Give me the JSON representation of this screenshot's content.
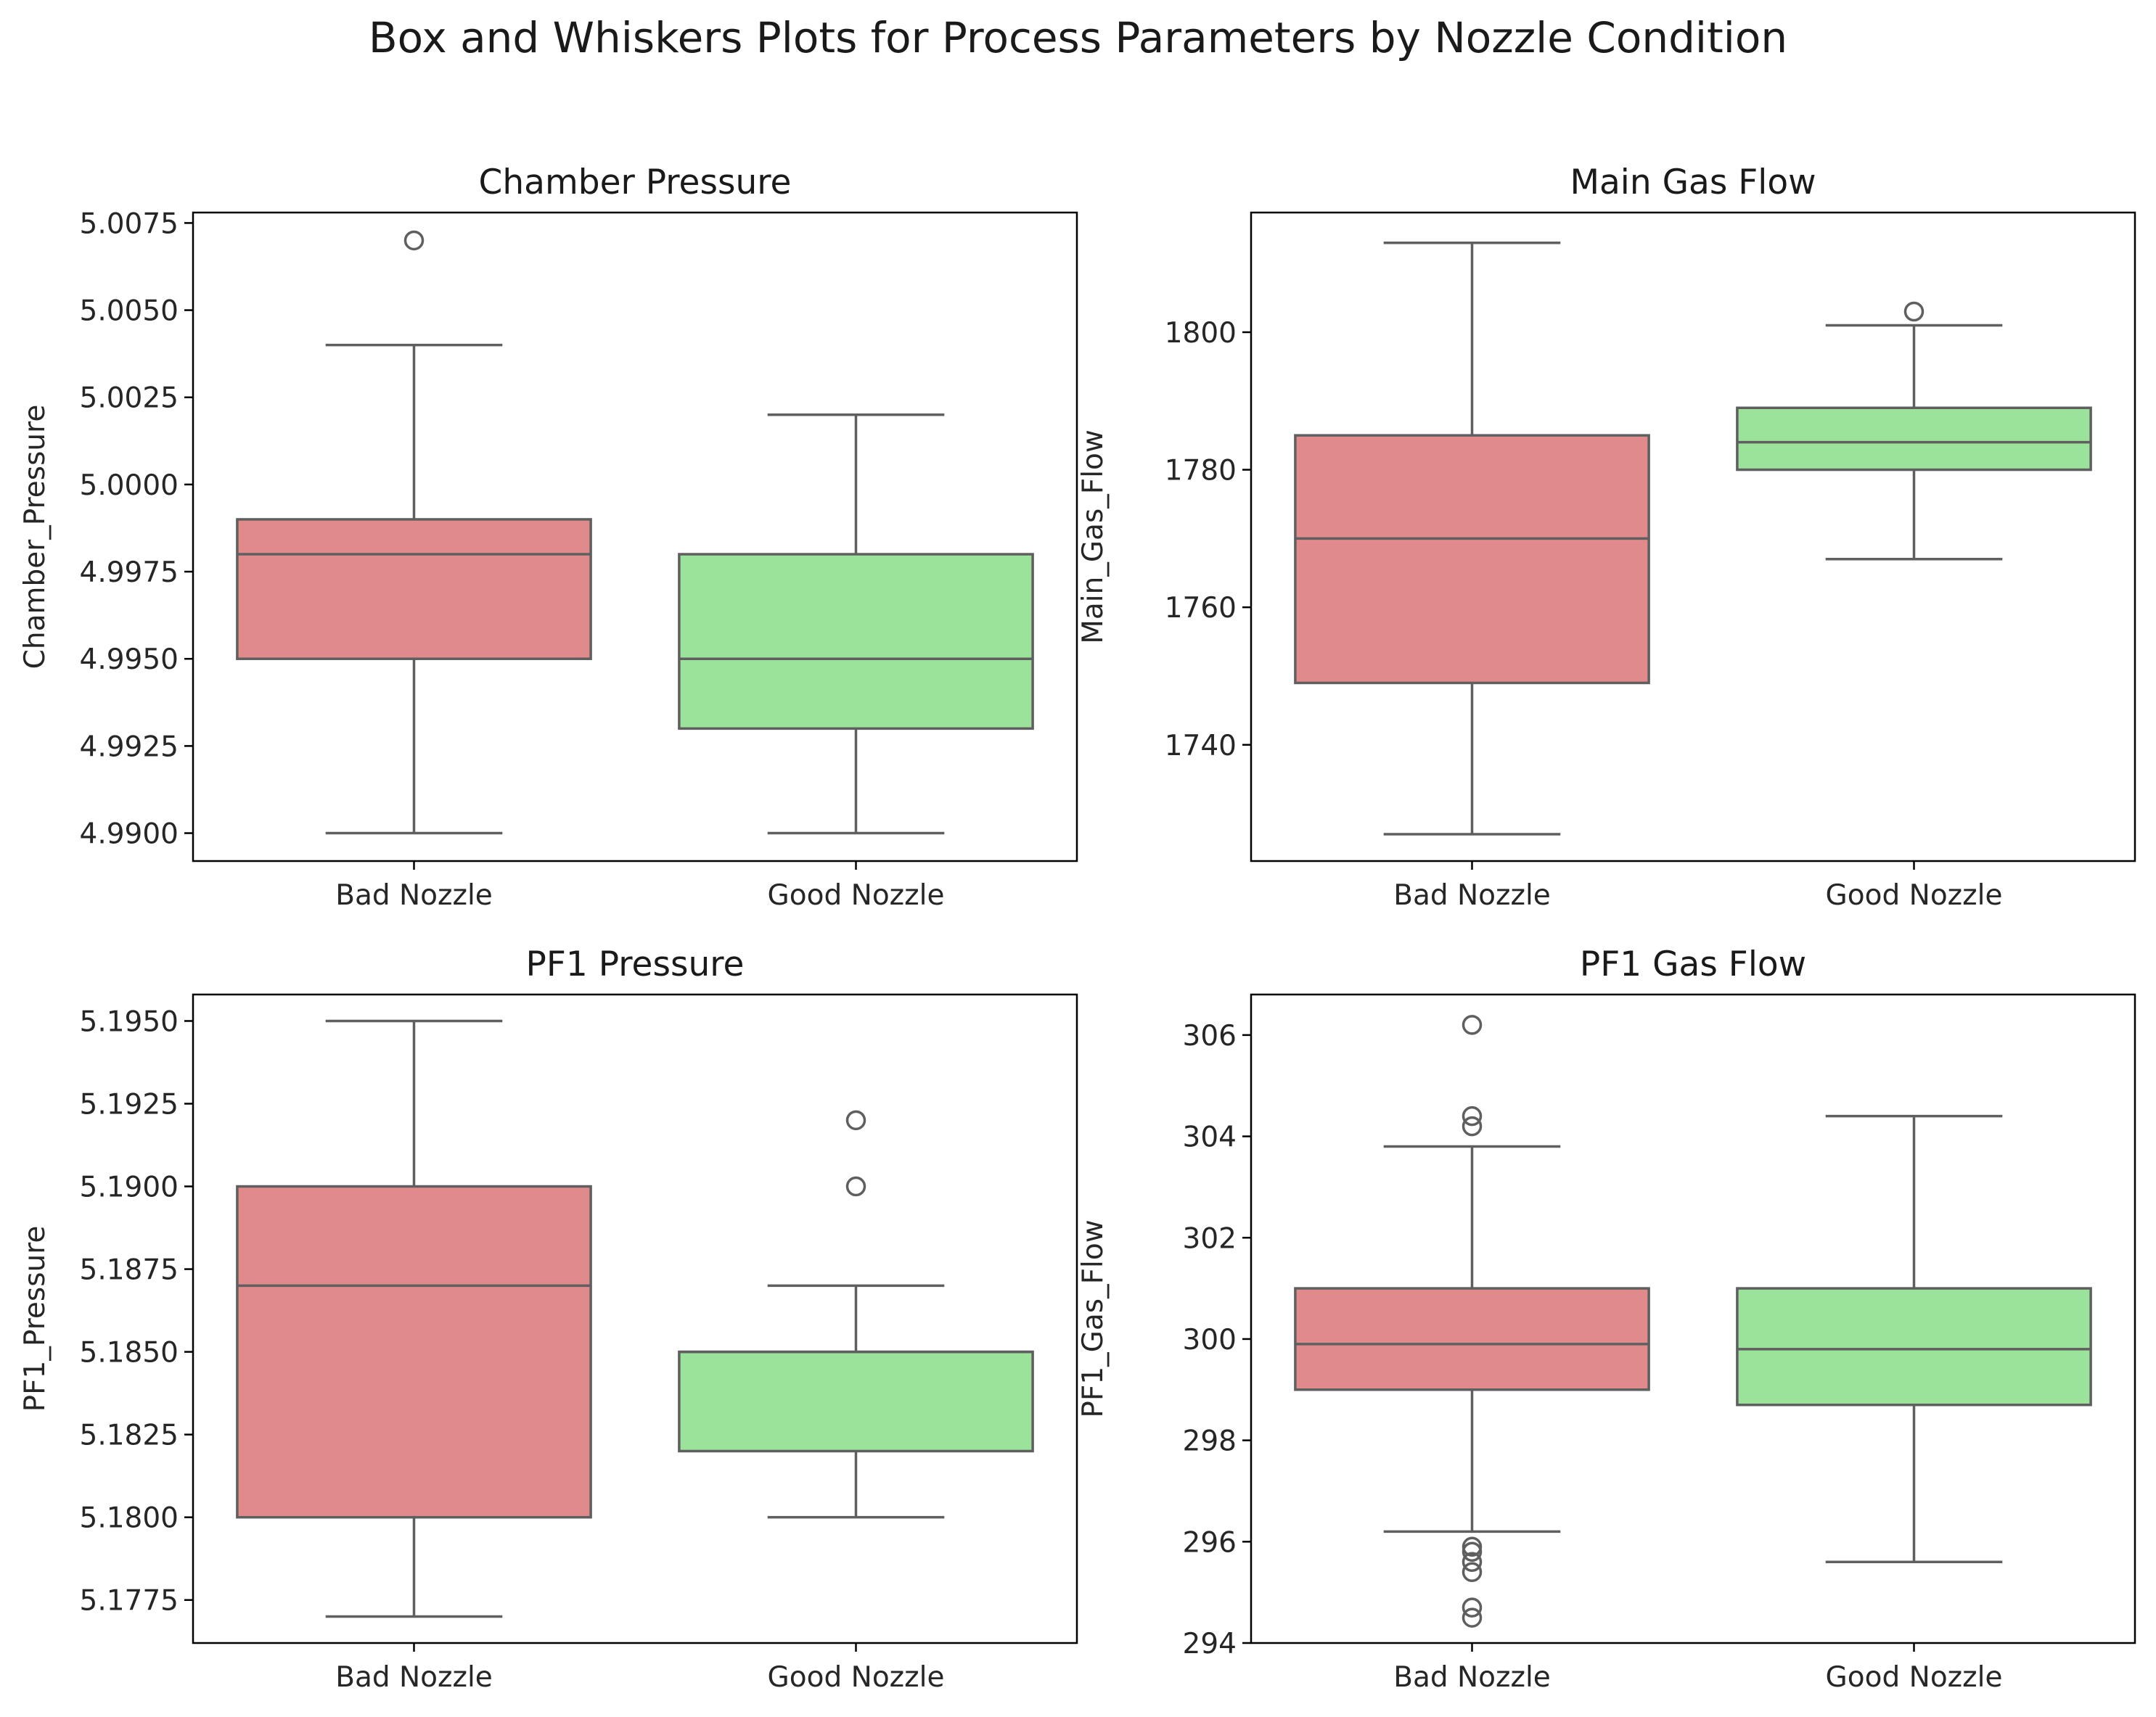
{
  "figure": {
    "title": "Box and Whiskers Plots for Process Parameters by Nozzle Condition"
  },
  "colors": {
    "bad_fill": "#e08a8c",
    "good_fill": "#9be29b",
    "stroke": "#5f5f5f",
    "axis": "#000000"
  },
  "chart_data": [
    {
      "type": "box",
      "title": "Chamber Pressure",
      "xlabel": "",
      "ylabel": "Chamber_Pressure",
      "ylim": [
        4.9892,
        5.0078
      ],
      "yticks": [
        4.99,
        4.9925,
        4.995,
        4.9975,
        5.0,
        5.0025,
        5.005,
        5.0075
      ],
      "ytick_labels": [
        "4.9900",
        "4.9925",
        "4.9950",
        "4.9975",
        "5.0000",
        "5.0025",
        "5.0050",
        "5.0075"
      ],
      "categories": [
        "Bad Nozzle",
        "Good Nozzle"
      ],
      "boxes": [
        {
          "category": "Bad Nozzle",
          "whisker_low": 4.99,
          "q1": 4.995,
          "median": 4.998,
          "q3": 4.999,
          "whisker_high": 5.004,
          "outliers": [
            5.007
          ]
        },
        {
          "category": "Good Nozzle",
          "whisker_low": 4.99,
          "q1": 4.993,
          "median": 4.995,
          "q3": 4.998,
          "whisker_high": 5.002,
          "outliers": []
        }
      ]
    },
    {
      "type": "box",
      "title": "Main Gas Flow",
      "xlabel": "",
      "ylabel": "Main_Gas_Flow",
      "ylim": [
        1723.1,
        1817.4
      ],
      "yticks": [
        1740,
        1760,
        1780,
        1800
      ],
      "ytick_labels": [
        "1740",
        "1760",
        "1780",
        "1800"
      ],
      "categories": [
        "Bad Nozzle",
        "Good Nozzle"
      ],
      "boxes": [
        {
          "category": "Bad Nozzle",
          "whisker_low": 1727,
          "q1": 1749,
          "median": 1770,
          "q3": 1785,
          "whisker_high": 1813,
          "outliers": []
        },
        {
          "category": "Good Nozzle",
          "whisker_low": 1767,
          "q1": 1780,
          "median": 1784,
          "q3": 1789,
          "whisker_high": 1801,
          "outliers": [
            1803
          ]
        }
      ]
    },
    {
      "type": "box",
      "title": "PF1 Pressure",
      "xlabel": "",
      "ylabel": "PF1_Pressure",
      "ylim": [
        5.1762,
        5.1958
      ],
      "yticks": [
        5.1775,
        5.18,
        5.1825,
        5.185,
        5.1875,
        5.19,
        5.1925,
        5.195
      ],
      "ytick_labels": [
        "5.1775",
        "5.1800",
        "5.1825",
        "5.1850",
        "5.1875",
        "5.1900",
        "5.1925",
        "5.1950"
      ],
      "categories": [
        "Bad Nozzle",
        "Good Nozzle"
      ],
      "boxes": [
        {
          "category": "Bad Nozzle",
          "whisker_low": 5.177,
          "q1": 5.18,
          "median": 5.187,
          "q3": 5.19,
          "whisker_high": 5.195,
          "outliers": []
        },
        {
          "category": "Good Nozzle",
          "whisker_low": 5.18,
          "q1": 5.182,
          "median": 5.185,
          "q3": 5.185,
          "whisker_high": 5.187,
          "outliers": [
            5.19,
            5.192
          ]
        }
      ]
    },
    {
      "type": "box",
      "title": "PF1 Gas Flow",
      "xlabel": "",
      "ylabel": "PF1_Gas_Flow",
      "ylim": [
        294.0,
        306.8
      ],
      "yticks": [
        294,
        296,
        298,
        300,
        302,
        304,
        306
      ],
      "ytick_labels": [
        "294",
        "296",
        "298",
        "300",
        "302",
        "304",
        "306"
      ],
      "categories": [
        "Bad Nozzle",
        "Good Nozzle"
      ],
      "boxes": [
        {
          "category": "Bad Nozzle",
          "whisker_low": 296.2,
          "q1": 299.0,
          "median": 299.9,
          "q3": 301.0,
          "whisker_high": 303.8,
          "outliers": [
            306.2,
            304.4,
            304.2,
            295.9,
            295.8,
            295.6,
            295.4,
            294.7,
            294.5
          ]
        },
        {
          "category": "Good Nozzle",
          "whisker_low": 295.6,
          "q1": 298.7,
          "median": 299.8,
          "q3": 301.0,
          "whisker_high": 304.4,
          "outliers": []
        }
      ]
    }
  ]
}
